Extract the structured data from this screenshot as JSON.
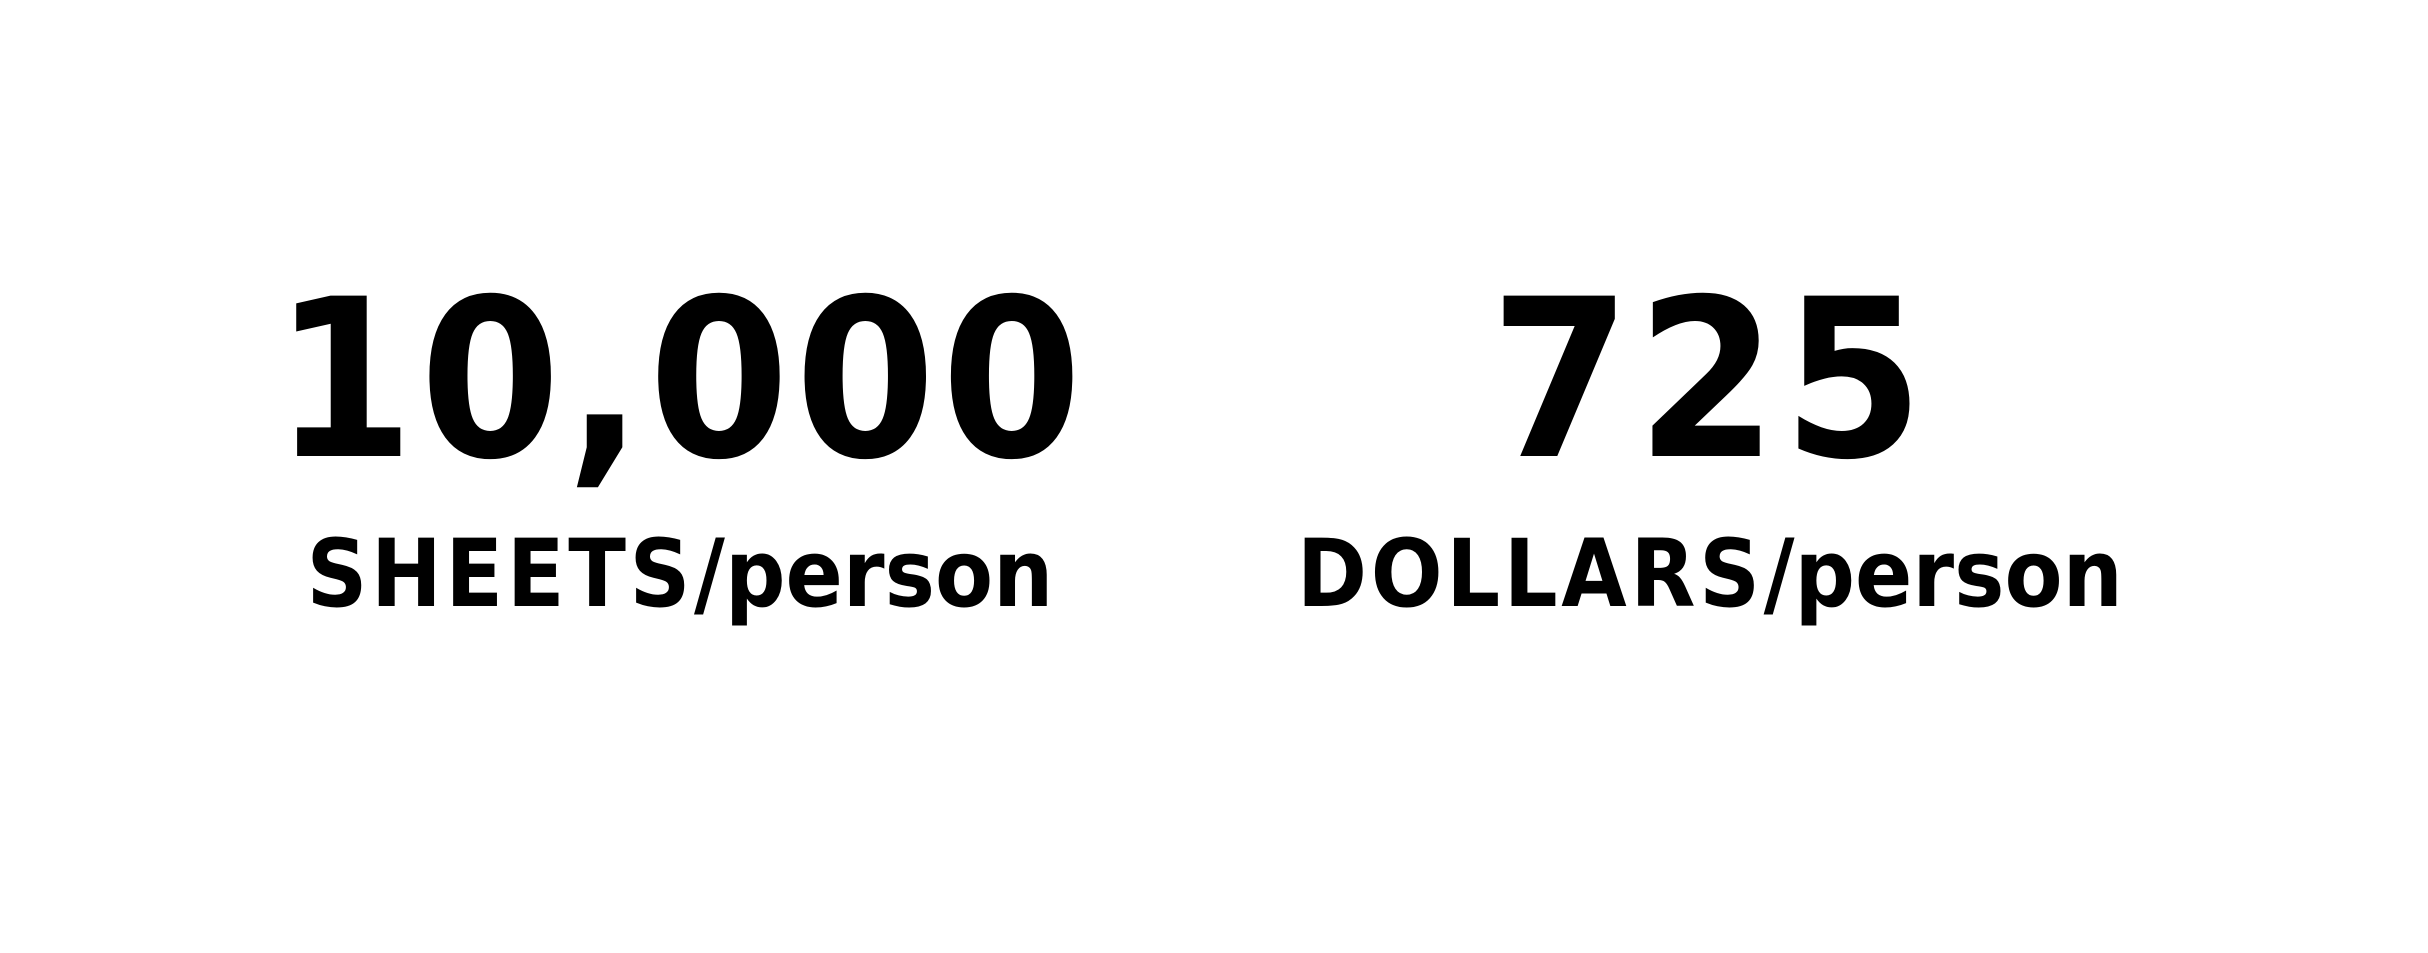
{
  "stats": [
    {
      "value": "10,000",
      "unit": "SHEETS",
      "per": "/person"
    },
    {
      "value": "725",
      "unit": "DOLLARS",
      "per": "/person"
    }
  ],
  "colors": {
    "text": "#000000",
    "background": "#ffffff"
  }
}
